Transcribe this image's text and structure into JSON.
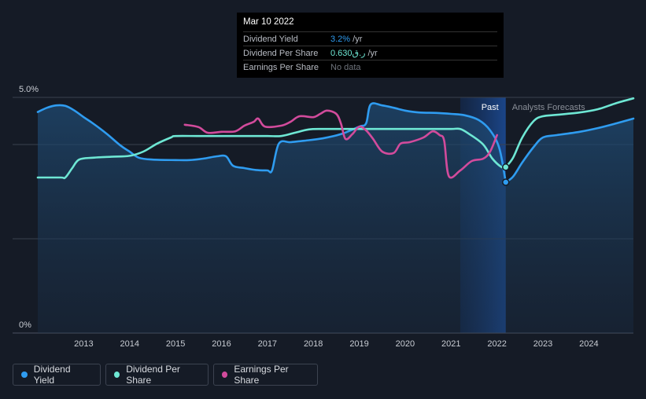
{
  "tooltip": {
    "date": "Mar 10 2022",
    "rows": [
      {
        "label": "Dividend Yield",
        "value": "3.2%",
        "unit": " /yr",
        "color": "#2f9cf0"
      },
      {
        "label": "Dividend Per Share",
        "value": "0.630ر.ق",
        "unit": " /yr",
        "color": "#6ee7d4"
      },
      {
        "label": "Earnings Per Share",
        "value": "No data",
        "unit": "",
        "color": "#888d96"
      }
    ]
  },
  "legend": [
    {
      "label": "Dividend Yield",
      "color": "#2f9cf0"
    },
    {
      "label": "Dividend Per Share",
      "color": "#6ee7d4"
    },
    {
      "label": "Earnings Per Share",
      "color": "#d24b9c"
    }
  ],
  "chart_data": {
    "type": "line",
    "y_tick_labels": [
      "5.0%",
      "0%"
    ],
    "ylim": [
      0,
      5.0
    ],
    "xlim": [
      2012.0,
      2024.97
    ],
    "x_ticks": [
      2013,
      2014,
      2015,
      2016,
      2017,
      2018,
      2019,
      2020,
      2021,
      2022,
      2023,
      2024
    ],
    "past_label": "Past",
    "forecast_label": "Analysts Forecasts",
    "forecast_start": 2022.19,
    "highlight_start": 2021.2,
    "series": [
      {
        "name": "Dividend Yield",
        "color": "#2f9cf0",
        "fill": true,
        "points": [
          [
            2012.0,
            4.69
          ],
          [
            2012.2,
            4.78
          ],
          [
            2012.4,
            4.83
          ],
          [
            2012.6,
            4.82
          ],
          [
            2012.8,
            4.72
          ],
          [
            2013.0,
            4.58
          ],
          [
            2013.2,
            4.45
          ],
          [
            2013.5,
            4.23
          ],
          [
            2013.8,
            3.98
          ],
          [
            2014.0,
            3.85
          ],
          [
            2014.2,
            3.72
          ],
          [
            2014.5,
            3.68
          ],
          [
            2015.0,
            3.67
          ],
          [
            2015.3,
            3.67
          ],
          [
            2015.6,
            3.7
          ],
          [
            2015.9,
            3.75
          ],
          [
            2016.1,
            3.75
          ],
          [
            2016.25,
            3.55
          ],
          [
            2016.5,
            3.5
          ],
          [
            2016.75,
            3.46
          ],
          [
            2017.0,
            3.45
          ],
          [
            2017.1,
            3.45
          ],
          [
            2017.25,
            4.02
          ],
          [
            2017.5,
            4.05
          ],
          [
            2017.8,
            4.08
          ],
          [
            2018.2,
            4.13
          ],
          [
            2018.6,
            4.22
          ],
          [
            2019.0,
            4.38
          ],
          [
            2019.15,
            4.45
          ],
          [
            2019.25,
            4.85
          ],
          [
            2019.5,
            4.83
          ],
          [
            2019.75,
            4.78
          ],
          [
            2020.0,
            4.72
          ],
          [
            2020.3,
            4.68
          ],
          [
            2020.7,
            4.67
          ],
          [
            2021.0,
            4.65
          ],
          [
            2021.3,
            4.62
          ],
          [
            2021.6,
            4.52
          ],
          [
            2021.85,
            4.3
          ],
          [
            2022.05,
            3.92
          ],
          [
            2022.19,
            3.2
          ]
        ]
      },
      {
        "name": "Dividend Yield Forecast",
        "color": "#2f9cf0",
        "fill": true,
        "points": [
          [
            2022.19,
            3.2
          ],
          [
            2022.35,
            3.32
          ],
          [
            2022.55,
            3.62
          ],
          [
            2022.8,
            3.95
          ],
          [
            2023.0,
            4.15
          ],
          [
            2023.3,
            4.2
          ],
          [
            2023.8,
            4.27
          ],
          [
            2024.2,
            4.35
          ],
          [
            2024.6,
            4.45
          ],
          [
            2024.97,
            4.55
          ]
        ]
      },
      {
        "name": "Dividend Per Share",
        "color": "#6ee7d4",
        "points": [
          [
            2012.0,
            3.3
          ],
          [
            2012.5,
            3.3
          ],
          [
            2012.6,
            3.3
          ],
          [
            2012.75,
            3.5
          ],
          [
            2012.9,
            3.68
          ],
          [
            2013.2,
            3.72
          ],
          [
            2013.6,
            3.74
          ],
          [
            2014.0,
            3.76
          ],
          [
            2014.3,
            3.85
          ],
          [
            2014.6,
            4.02
          ],
          [
            2014.9,
            4.15
          ],
          [
            2015.0,
            4.18
          ],
          [
            2015.5,
            4.18
          ],
          [
            2016.0,
            4.18
          ],
          [
            2016.5,
            4.18
          ],
          [
            2017.0,
            4.18
          ],
          [
            2017.3,
            4.18
          ],
          [
            2017.6,
            4.25
          ],
          [
            2017.9,
            4.32
          ],
          [
            2018.2,
            4.33
          ],
          [
            2018.5,
            4.33
          ],
          [
            2019.0,
            4.33
          ],
          [
            2019.5,
            4.33
          ],
          [
            2020.0,
            4.33
          ],
          [
            2020.5,
            4.33
          ],
          [
            2021.0,
            4.33
          ],
          [
            2021.2,
            4.33
          ],
          [
            2021.4,
            4.22
          ],
          [
            2021.7,
            4.0
          ],
          [
            2021.9,
            3.7
          ],
          [
            2022.1,
            3.52
          ],
          [
            2022.19,
            3.52
          ]
        ]
      },
      {
        "name": "Dividend Per Share Forecast",
        "color": "#6ee7d4",
        "points": [
          [
            2022.19,
            3.52
          ],
          [
            2022.35,
            3.72
          ],
          [
            2022.55,
            4.15
          ],
          [
            2022.8,
            4.5
          ],
          [
            2023.0,
            4.6
          ],
          [
            2023.3,
            4.63
          ],
          [
            2023.8,
            4.68
          ],
          [
            2024.2,
            4.75
          ],
          [
            2024.6,
            4.88
          ],
          [
            2024.97,
            4.98
          ]
        ]
      },
      {
        "name": "Earnings Per Share",
        "color": "#d24b9c",
        "points": [
          [
            2015.2,
            4.42
          ],
          [
            2015.5,
            4.37
          ],
          [
            2015.7,
            4.25
          ],
          [
            2016.0,
            4.27
          ],
          [
            2016.3,
            4.28
          ],
          [
            2016.5,
            4.4
          ],
          [
            2016.7,
            4.48
          ],
          [
            2016.8,
            4.55
          ],
          [
            2016.95,
            4.38
          ],
          [
            2017.3,
            4.4
          ],
          [
            2017.5,
            4.48
          ],
          [
            2017.7,
            4.6
          ],
          [
            2018.0,
            4.58
          ],
          [
            2018.15,
            4.65
          ],
          [
            2018.3,
            4.72
          ],
          [
            2018.5,
            4.65
          ],
          [
            2018.6,
            4.45
          ],
          [
            2018.7,
            4.12
          ],
          [
            2018.85,
            4.22
          ],
          [
            2019.0,
            4.38
          ],
          [
            2019.15,
            4.3
          ],
          [
            2019.3,
            4.12
          ],
          [
            2019.5,
            3.85
          ],
          [
            2019.75,
            3.82
          ],
          [
            2019.9,
            4.02
          ],
          [
            2020.1,
            4.05
          ],
          [
            2020.4,
            4.15
          ],
          [
            2020.6,
            4.28
          ],
          [
            2020.75,
            4.2
          ],
          [
            2020.85,
            4.08
          ],
          [
            2020.95,
            3.33
          ],
          [
            2021.2,
            3.45
          ],
          [
            2021.45,
            3.65
          ],
          [
            2021.7,
            3.7
          ],
          [
            2021.85,
            3.85
          ],
          [
            2022.0,
            4.2
          ]
        ]
      }
    ],
    "markers": [
      {
        "series": "Dividend Per Share",
        "x": 2022.19,
        "y": 3.52,
        "color": "#6ee7d4"
      },
      {
        "series": "Dividend Yield",
        "x": 2022.19,
        "y": 3.2,
        "color": "#2f9cf0"
      }
    ]
  }
}
